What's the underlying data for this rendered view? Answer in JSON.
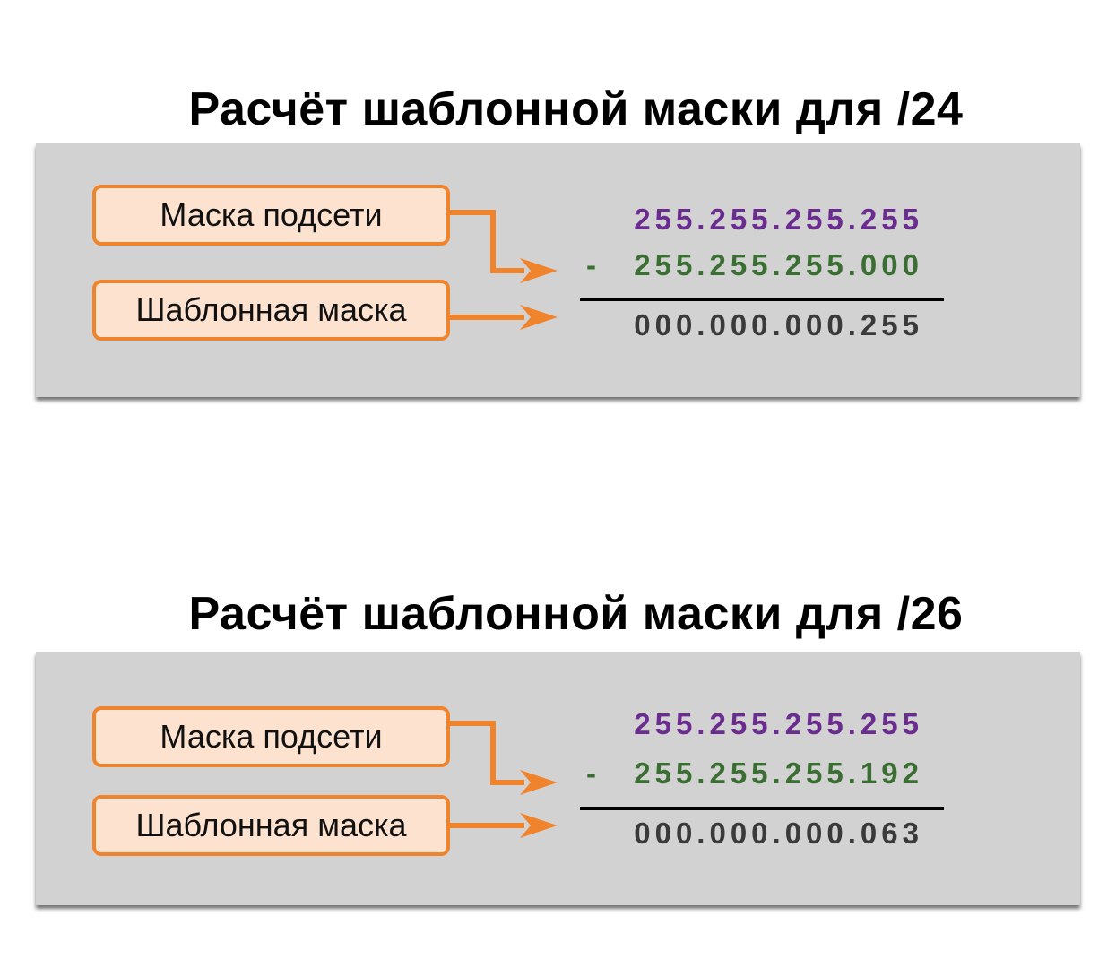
{
  "colors": {
    "panel_bg": "#d3d2d3",
    "box_border": "#f0842c",
    "box_fill": "#fde3cf",
    "arrow": "#f0842c",
    "subnet_value": "#6a2c8e",
    "subtract_value": "#3a6e33",
    "result_value": "#3a3a3a"
  },
  "sections": [
    {
      "title": "Расчёт шаблонной маски для /24",
      "label_subnet": "Маска подсети",
      "label_wildcard": "Шаблонная маска",
      "line_1": "255.255.255.255",
      "minus": "-",
      "line_2": "255.255.255.000",
      "result": "000.000.000.255"
    },
    {
      "title": "Расчёт шаблонной маски для /26",
      "label_subnet": "Маска подсети",
      "label_wildcard": "Шаблонная маска",
      "line_1": "255.255.255.255",
      "minus": "-",
      "line_2": "255.255.255.192",
      "result": "000.000.000.063"
    }
  ]
}
